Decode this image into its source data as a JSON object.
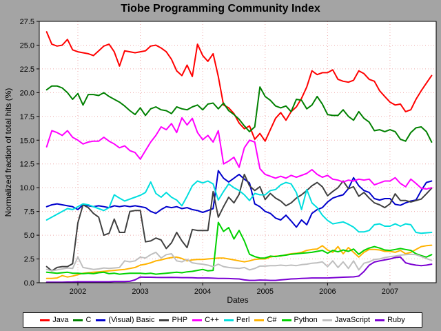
{
  "window": {
    "background": "#a4a4a4",
    "plot_background": "#ffffff",
    "grid_color": "#eeaaaa",
    "border_color": "#000000"
  },
  "chart_data": {
    "type": "line",
    "title": "Tiobe Programming Community Index",
    "xlabel": "Dates",
    "ylabel": "Normalized fraction of total hits (%)",
    "ylim": [
      0,
      27.5
    ],
    "ytick_step": 2.5,
    "xlim": [
      2001.382,
      2007.74
    ],
    "xticks": [
      2002,
      2003,
      2004,
      2005,
      2006,
      2007
    ],
    "x_start": 2001.5,
    "x_step": 0.08333333,
    "grid": true,
    "legend_position": "bottom",
    "series": [
      {
        "name": "Java",
        "color": "#ff0000",
        "values": [
          26.4,
          25.1,
          24.9,
          25.0,
          25.6,
          24.5,
          24.3,
          24.2,
          24.1,
          23.9,
          24.4,
          24.9,
          25.1,
          24.3,
          22.8,
          24.4,
          24.3,
          24.2,
          24.3,
          24.4,
          24.9,
          25.0,
          24.7,
          24.3,
          23.5,
          22.3,
          21.8,
          22.9,
          21.7,
          25.1,
          23.9,
          23.3,
          24.1,
          21.7,
          18.7,
          18.4,
          17.8,
          16.8,
          16.2,
          16.5,
          15.1,
          15.7,
          14.9,
          16.1,
          17.3,
          17.9,
          17.1,
          18.0,
          18.5,
          19.4,
          20.6,
          22.3,
          21.9,
          22.1,
          22.1,
          22.4,
          21.4,
          21.2,
          21.1,
          21.3,
          22.3,
          22.0,
          21.4,
          21.2,
          20.2,
          19.6,
          19.0,
          18.7,
          18.8,
          18.0,
          18.2,
          19.3,
          20.2,
          21.0,
          21.8
        ]
      },
      {
        "name": "C",
        "color": "#008000",
        "values": [
          20.3,
          20.7,
          20.7,
          20.5,
          20.0,
          19.3,
          19.9,
          18.7,
          19.8,
          19.8,
          19.7,
          20.0,
          19.6,
          19.3,
          19.0,
          18.6,
          18.1,
          17.7,
          18.4,
          17.6,
          18.3,
          18.5,
          18.2,
          18.1,
          17.8,
          18.5,
          18.3,
          18.2,
          18.5,
          18.7,
          18.2,
          18.8,
          18.9,
          18.3,
          18.9,
          18.1,
          17.7,
          17.2,
          16.5,
          15.9,
          16.4,
          20.6,
          19.6,
          19.2,
          18.6,
          18.4,
          18.6,
          18.0,
          19.3,
          19.2,
          18.3,
          18.7,
          19.6,
          18.8,
          17.7,
          17.6,
          17.6,
          18.2,
          17.5,
          17.1,
          18.0,
          17.3,
          16.9,
          16.0,
          16.1,
          15.9,
          16.1,
          15.9,
          15.1,
          14.9,
          15.8,
          16.3,
          16.4,
          15.9,
          14.8
        ]
      },
      {
        "name": "(Visual) Basic",
        "color": "#0000cc",
        "values": [
          8.0,
          8.2,
          8.3,
          8.2,
          8.1,
          8.0,
          7.7,
          8.2,
          8.1,
          8.0,
          8.1,
          8.0,
          7.9,
          8.1,
          8.0,
          8.1,
          8.0,
          8.1,
          8.0,
          7.9,
          7.5,
          7.3,
          7.7,
          8.0,
          7.9,
          8.0,
          7.8,
          7.9,
          7.7,
          7.6,
          7.4,
          7.6,
          7.8,
          11.8,
          11.0,
          10.6,
          11.0,
          11.4,
          10.9,
          10.5,
          8.3,
          8.0,
          7.5,
          7.3,
          6.8,
          6.6,
          7.1,
          6.5,
          5.85,
          6.6,
          6.1,
          7.3,
          7.7,
          7.9,
          8.5,
          8.9,
          9.1,
          9.25,
          9.9,
          11.05,
          10.2,
          9.7,
          9.5,
          8.85,
          8.7,
          8.85,
          8.85,
          8.25,
          8.15,
          8.4,
          8.6,
          8.7,
          9.7,
          10.55,
          10.7
        ]
      },
      {
        "name": "PHP",
        "color": "#404040",
        "values": [
          1.7,
          1.25,
          1.6,
          1.7,
          1.7,
          2.0,
          6.3,
          8.2,
          7.9,
          7.3,
          6.9,
          5.0,
          5.2,
          6.7,
          5.3,
          5.3,
          7.5,
          7.6,
          7.6,
          4.3,
          4.4,
          4.7,
          4.5,
          3.6,
          4.2,
          5.3,
          4.4,
          3.7,
          5.6,
          5.5,
          5.5,
          5.5,
          9.6,
          6.9,
          8.0,
          9.0,
          8.4,
          9.3,
          11.4,
          10.2,
          9.7,
          10.1,
          8.75,
          9.4,
          8.9,
          8.6,
          8.1,
          8.4,
          8.9,
          9.25,
          9.7,
          10.2,
          10.55,
          10.1,
          9.15,
          9.6,
          10.0,
          10.7,
          9.9,
          10.1,
          9.1,
          9.5,
          8.9,
          8.4,
          8.2,
          7.9,
          8.3,
          9.35,
          8.65,
          8.65,
          8.5,
          8.65,
          8.8,
          9.35,
          9.95
        ]
      },
      {
        "name": "C++",
        "color": "#ff00ff",
        "values": [
          14.3,
          16.0,
          15.8,
          15.5,
          16.0,
          15.3,
          15.0,
          14.6,
          14.8,
          14.9,
          14.9,
          15.3,
          14.9,
          14.6,
          14.2,
          14.4,
          13.9,
          13.7,
          13.0,
          13.9,
          14.8,
          15.5,
          16.4,
          16.1,
          16.75,
          15.8,
          17.35,
          16.6,
          17.3,
          15.8,
          15.05,
          15.5,
          14.8,
          16.0,
          12.5,
          12.8,
          13.2,
          12.15,
          14.2,
          15.0,
          14.8,
          12.0,
          11.4,
          11.2,
          11.0,
          11.2,
          11.0,
          11.3,
          11.1,
          11.3,
          11.5,
          11.9,
          11.4,
          11.1,
          11.3,
          10.9,
          10.8,
          10.6,
          10.8,
          10.7,
          10.9,
          10.8,
          10.9,
          10.3,
          10.5,
          10.7,
          10.7,
          11.05,
          10.45,
          10.1,
          10.9,
          10.45,
          9.95,
          9.85,
          10.0
        ]
      },
      {
        "name": "Perl",
        "color": "#00dede",
        "values": [
          6.6,
          6.9,
          7.2,
          7.5,
          7.8,
          7.7,
          8.0,
          8.3,
          8.2,
          8.0,
          7.8,
          7.6,
          7.9,
          9.25,
          8.9,
          8.6,
          8.8,
          9.0,
          9.2,
          9.5,
          10.6,
          9.4,
          9.0,
          9.5,
          9.0,
          8.7,
          8.1,
          9.1,
          10.2,
          10.7,
          10.5,
          10.7,
          10.4,
          8.7,
          9.6,
          10.4,
          10.0,
          9.7,
          9.25,
          8.65,
          9.4,
          9.25,
          9.25,
          9.7,
          9.8,
          10.3,
          10.55,
          10.4,
          9.5,
          7.7,
          9.8,
          8.4,
          7.9,
          7.1,
          6.55,
          6.2,
          6.3,
          6.4,
          6.15,
          5.85,
          5.35,
          5.35,
          5.5,
          6.1,
          6.2,
          5.95,
          5.95,
          6.2,
          5.95,
          6.2,
          6.1,
          5.3,
          5.2,
          5.25,
          5.3
        ]
      },
      {
        "name": "C#",
        "color": "#ffb300",
        "values": [
          0.45,
          0.45,
          0.5,
          0.75,
          0.6,
          0.7,
          0.85,
          1.0,
          1.05,
          1.1,
          1.15,
          1.2,
          1.25,
          1.3,
          1.35,
          1.4,
          1.5,
          1.6,
          1.85,
          1.95,
          2.1,
          2.3,
          2.4,
          2.55,
          2.65,
          2.7,
          2.55,
          2.3,
          2.4,
          2.45,
          2.45,
          2.5,
          2.55,
          2.6,
          2.6,
          2.5,
          2.4,
          2.3,
          2.2,
          2.3,
          2.45,
          2.5,
          2.5,
          2.7,
          2.8,
          2.8,
          2.95,
          3.05,
          3.1,
          3.2,
          3.4,
          3.5,
          3.55,
          3.9,
          3.45,
          3.2,
          3.8,
          3.05,
          3.7,
          3.2,
          2.7,
          3.2,
          3.5,
          3.5,
          3.45,
          3.3,
          3.3,
          3.2,
          3.4,
          3.05,
          3.2,
          3.5,
          3.8,
          3.9,
          3.95
        ]
      },
      {
        "name": "Python",
        "color": "#00d200",
        "values": [
          1.1,
          1.05,
          1.0,
          1.05,
          1.1,
          1.0,
          1.0,
          0.95,
          1.0,
          0.95,
          1.05,
          1.1,
          0.95,
          1.0,
          0.9,
          0.95,
          1.0,
          1.0,
          1.0,
          0.95,
          1.0,
          0.9,
          0.95,
          1.0,
          1.05,
          1.1,
          1.05,
          1.15,
          1.2,
          1.3,
          1.4,
          1.25,
          1.3,
          6.35,
          5.4,
          5.8,
          4.6,
          5.5,
          4.4,
          3.0,
          2.75,
          2.6,
          2.6,
          2.8,
          2.75,
          2.85,
          2.9,
          3.0,
          3.05,
          3.1,
          3.15,
          3.2,
          3.3,
          3.4,
          3.1,
          3.4,
          3.25,
          3.45,
          3.3,
          3.55,
          3.0,
          3.4,
          3.65,
          3.8,
          3.65,
          3.45,
          3.4,
          3.5,
          3.6,
          3.5,
          3.4,
          3.05,
          2.85,
          2.7,
          2.95
        ]
      },
      {
        "name": "JavaScript",
        "color": "#bfbfbf",
        "values": [
          1.4,
          1.25,
          1.35,
          1.45,
          1.55,
          1.5,
          2.7,
          1.6,
          1.5,
          1.4,
          1.45,
          1.55,
          1.5,
          1.55,
          1.6,
          2.3,
          2.2,
          2.3,
          2.7,
          2.6,
          2.95,
          3.2,
          2.6,
          2.95,
          3.05,
          2.3,
          2.2,
          2.45,
          2.1,
          2.0,
          1.95,
          1.85,
          1.7,
          1.95,
          1.7,
          1.6,
          1.55,
          1.5,
          1.6,
          1.35,
          1.5,
          1.75,
          1.75,
          1.8,
          1.8,
          1.85,
          1.8,
          1.85,
          1.8,
          1.9,
          1.95,
          2.05,
          2.1,
          2.2,
          1.7,
          2.3,
          1.6,
          2.2,
          1.5,
          2.3,
          1.35,
          2.05,
          2.2,
          2.45,
          2.5,
          2.65,
          2.75,
          2.8,
          2.9,
          2.95,
          3.0,
          2.95,
          2.75,
          2.55,
          2.35
        ]
      },
      {
        "name": "Ruby",
        "color": "#7a00d2",
        "values": [
          0.05,
          0.05,
          0.06,
          0.06,
          0.07,
          0.08,
          0.1,
          0.1,
          0.1,
          0.1,
          0.1,
          0.1,
          0.1,
          0.12,
          0.12,
          0.12,
          0.15,
          0.3,
          0.6,
          0.58,
          0.58,
          0.56,
          0.55,
          0.55,
          0.56,
          0.55,
          0.54,
          0.54,
          0.52,
          0.5,
          0.5,
          0.5,
          0.48,
          0.45,
          0.45,
          0.44,
          0.42,
          0.4,
          0.3,
          0.25,
          0.25,
          0.28,
          0.27,
          0.25,
          0.25,
          0.3,
          0.35,
          0.4,
          0.42,
          0.45,
          0.47,
          0.5,
          0.5,
          0.5,
          0.5,
          0.52,
          0.55,
          0.58,
          0.6,
          0.62,
          0.7,
          1.18,
          1.84,
          2.18,
          2.3,
          2.4,
          2.5,
          2.65,
          2.7,
          2.1,
          1.95,
          1.85,
          1.8,
          1.85,
          1.95
        ]
      }
    ]
  }
}
